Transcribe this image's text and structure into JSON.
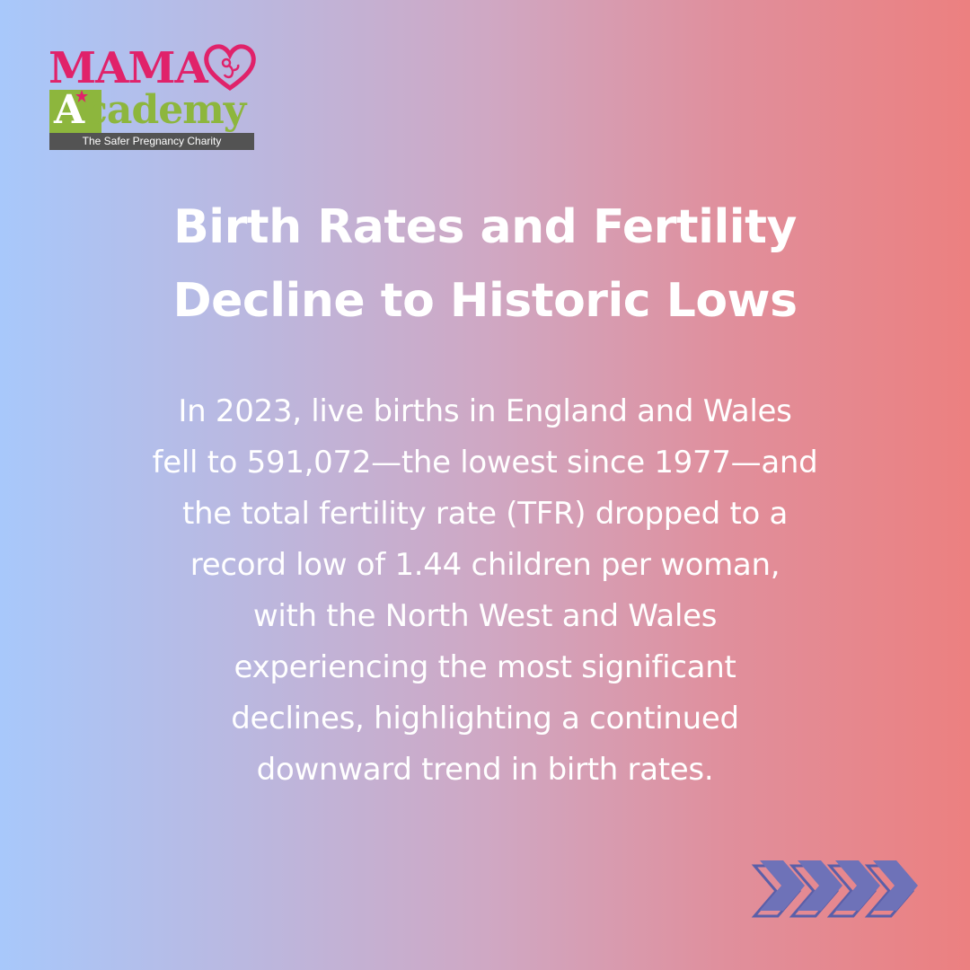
{
  "logo": {
    "mama": "MAMA",
    "academy_first": "A",
    "academy_rest": "cademy",
    "tagline": "The Safer Pregnancy Charity"
  },
  "title": {
    "lines": [
      "Birth Rates and Fertility",
      "Decline to Historic Lows"
    ]
  },
  "body": {
    "lines": [
      "In 2023, live births in England and Wales",
      "fell to 591,072—the lowest since 1977—and",
      "the total fertility rate (TFR) dropped to a",
      "record low of 1.44 children per woman,",
      "with the North West and Wales",
      "experiencing the most significant",
      "declines, highlighting a continued",
      "downward trend in birth rates."
    ]
  },
  "colors": {
    "gradient_left": "#a8c8fb",
    "gradient_right": "#ec8080",
    "logo_pink": "#e0226a",
    "logo_green": "#8db63d",
    "logo_purple": "#6f6fb0",
    "arrow_fill": "#6e72b8"
  },
  "decor": {
    "arrows_icon": "chevron-arrows-icon",
    "heart_icon": "heart-icon"
  }
}
